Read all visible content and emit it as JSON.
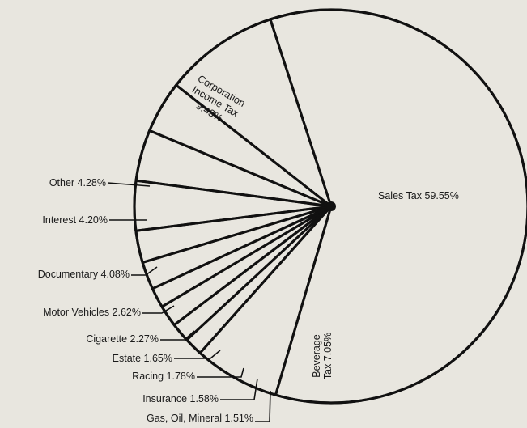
{
  "chart_data": {
    "type": "pie",
    "title": "",
    "start_angle_deg": -108,
    "slices": [
      {
        "label": "Sales Tax",
        "value": 59.55,
        "text": "Sales Tax 59.55%"
      },
      {
        "label": "Beverage Tax",
        "value": 7.05,
        "lines": [
          "Beverage",
          "Tax 7.05%"
        ]
      },
      {
        "label": "Gas, Oil, Mineral",
        "value": 1.51,
        "text": "Gas, Oil, Mineral 1.51%"
      },
      {
        "label": "Insurance",
        "value": 1.58,
        "text": "Insurance 1.58%"
      },
      {
        "label": "Racing",
        "value": 1.78,
        "text": "Racing 1.78%"
      },
      {
        "label": "Estate",
        "value": 1.65,
        "text": "Estate 1.65%"
      },
      {
        "label": "Cigarette",
        "value": 2.27,
        "text": "Cigarette 2.27%"
      },
      {
        "label": "Motor Vehicles",
        "value": 2.62,
        "text": "Motor Vehicles 2.62%"
      },
      {
        "label": "Documentary",
        "value": 4.08,
        "text": "Documentary 4.08%"
      },
      {
        "label": "Interest",
        "value": 4.2,
        "text": "Interest 4.20%"
      },
      {
        "label": "Other",
        "value": 4.28,
        "text": "Other 4.28%"
      },
      {
        "label": "Corporation Income Tax",
        "value": 9.43,
        "lines": [
          "Corporation",
          "Income Tax",
          "9.43%"
        ]
      }
    ]
  }
}
